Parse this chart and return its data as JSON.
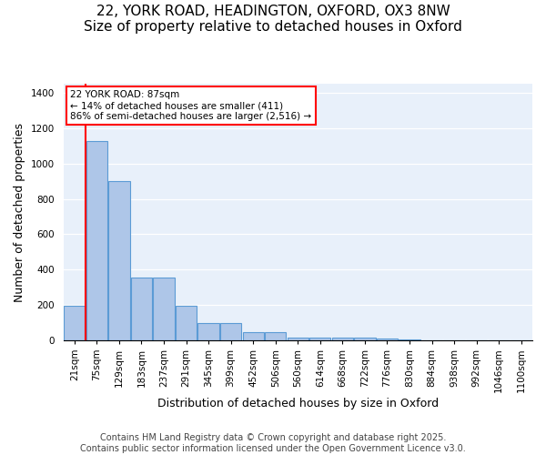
{
  "title1": "22, YORK ROAD, HEADINGTON, OXFORD, OX3 8NW",
  "title2": "Size of property relative to detached houses in Oxford",
  "xlabel": "Distribution of detached houses by size in Oxford",
  "ylabel": "Number of detached properties",
  "annotation_title": "22 YORK ROAD: 87sqm",
  "annotation_line1": "← 14% of detached houses are smaller (411)",
  "annotation_line2": "86% of semi-detached houses are larger (2,516) →",
  "footer1": "Contains HM Land Registry data © Crown copyright and database right 2025.",
  "footer2": "Contains public sector information licensed under the Open Government Licence v3.0.",
  "bins": [
    "21sqm",
    "75sqm",
    "129sqm",
    "183sqm",
    "237sqm",
    "291sqm",
    "345sqm",
    "399sqm",
    "452sqm",
    "506sqm",
    "560sqm",
    "614sqm",
    "668sqm",
    "722sqm",
    "776sqm",
    "830sqm",
    "884sqm",
    "938sqm",
    "992sqm",
    "1046sqm",
    "1100sqm"
  ],
  "heights": [
    195,
    1130,
    900,
    355,
    355,
    195,
    95,
    95,
    45,
    45,
    15,
    15,
    15,
    15,
    10,
    5,
    0,
    0,
    0,
    0,
    0
  ],
  "bar_color": "#aec6e8",
  "bar_edge_color": "#5b9bd5",
  "vline_color": "#ff0000",
  "annotation_box_color": "#ff0000",
  "background_color": "#e8f0fa",
  "ylim": [
    0,
    1450
  ],
  "yticks": [
    0,
    200,
    400,
    600,
    800,
    1000,
    1200,
    1400
  ],
  "title_fontsize": 11,
  "axis_label_fontsize": 9,
  "tick_fontsize": 7.5,
  "footer_fontsize": 7
}
